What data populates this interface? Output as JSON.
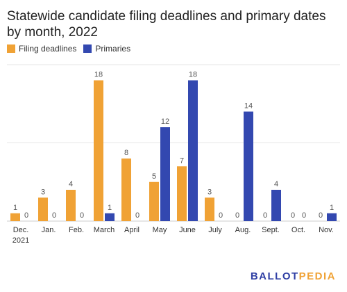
{
  "chart_data": {
    "type": "bar",
    "title": "Statewide candidate filing deadlines and primary dates by month, 2022",
    "categories": [
      "Dec. 2021",
      "Jan.",
      "Feb.",
      "March",
      "April",
      "May",
      "June",
      "July",
      "Aug.",
      "Sept.",
      "Oct.",
      "Nov."
    ],
    "category_lines": [
      [
        "Dec.",
        "2021"
      ],
      [
        "Jan."
      ],
      [
        "Feb."
      ],
      [
        "March"
      ],
      [
        "April"
      ],
      [
        "May"
      ],
      [
        "June"
      ],
      [
        "July"
      ],
      [
        "Aug."
      ],
      [
        "Sept."
      ],
      [
        "Oct."
      ],
      [
        "Nov."
      ]
    ],
    "series": [
      {
        "name": "Filing deadlines",
        "color": "#f0a235",
        "values": [
          1,
          3,
          4,
          18,
          8,
          5,
          7,
          3,
          0,
          0,
          0,
          0
        ]
      },
      {
        "name": "Primaries",
        "color": "#3348b0",
        "values": [
          0,
          0,
          0,
          1,
          0,
          12,
          18,
          0,
          14,
          4,
          0,
          1
        ]
      }
    ],
    "ylim": [
      0,
      20
    ],
    "grid": true,
    "legend_position": "top-left",
    "xlabel": "",
    "ylabel": ""
  },
  "branding": {
    "logo_text_1": "BALLOT",
    "logo_text_2": "PEDIA"
  }
}
